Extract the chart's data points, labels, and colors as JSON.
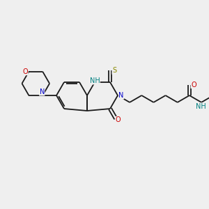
{
  "bg_color": "#efefef",
  "bond_color": "#1a1a1a",
  "atom_colors": {
    "N": "#0000cc",
    "O": "#cc0000",
    "S": "#888800",
    "NH": "#008080",
    "C": "#1a1a1a"
  },
  "lw": 1.3,
  "fs": 7.0
}
